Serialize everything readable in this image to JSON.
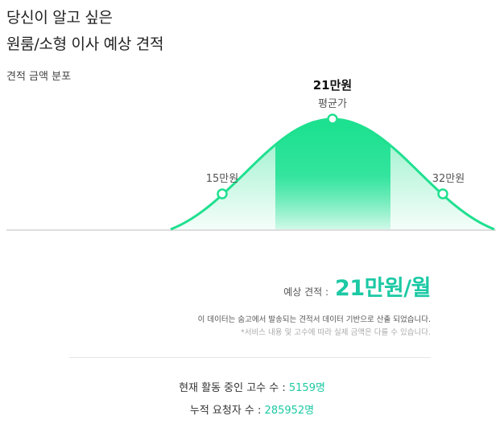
{
  "header": {
    "title_line1": "당신이 알고 싶은",
    "title_line2": "원룸/소형 이사 예상 견적"
  },
  "distribution": {
    "label": "견적 금액 분포",
    "average_value": "21만원",
    "average_label": "평균가",
    "low_label": "15만원",
    "high_label": "32만원"
  },
  "chart_data": {
    "type": "area",
    "title": "견적 금액 분포",
    "points": [
      {
        "x": 15,
        "label": "15만원"
      },
      {
        "x": 21,
        "label": "21만원",
        "note": "평균가"
      },
      {
        "x": 32,
        "label": "32만원"
      }
    ],
    "grid": false
  },
  "estimate": {
    "label": "예상 견적 :",
    "value": "21만원/월"
  },
  "notes": {
    "line1": "이 데이터는 숨고에서 발송되는 견적서 데이터 기반으로 산출 되었습니다.",
    "line2": "*서비스 내용 및 고수에 따라 실제 금액은 다를 수 있습니다."
  },
  "stats": {
    "active_label": "현재 활동 중인 고수 수 :",
    "active_value": "5159명",
    "requests_label": "누적 요청자 수 :",
    "requests_value": "285952명"
  },
  "colors": {
    "accent": "#1cc9a4",
    "curve": "#1fe08f"
  }
}
